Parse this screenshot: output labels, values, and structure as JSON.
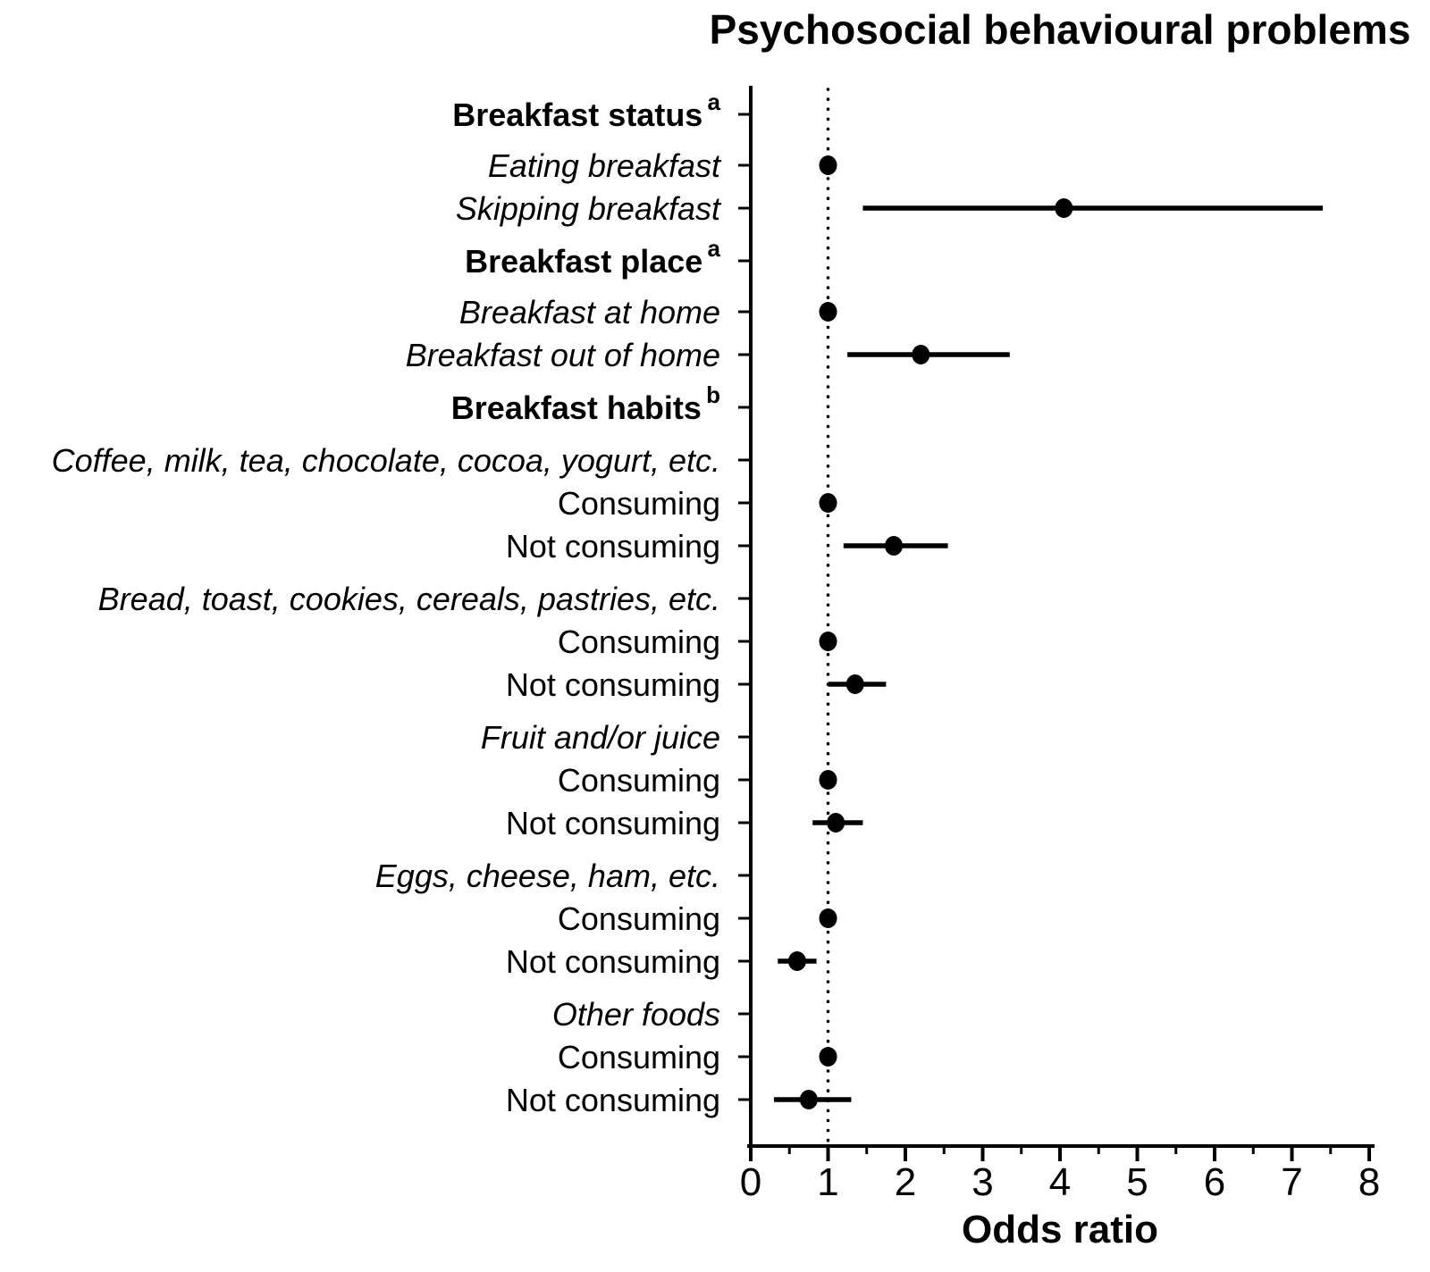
{
  "title": "Psychosocial behavioural problems",
  "xlabel": "Odds ratio",
  "chart_data": {
    "type": "scatter",
    "subtype": "forest-plot",
    "title": "Psychosocial behavioural problems",
    "xlabel": "Odds ratio",
    "xlim": [
      0,
      8
    ],
    "x_major_ticks": [
      0,
      1,
      2,
      3,
      4,
      5,
      6,
      7,
      8
    ],
    "x_minor_tick_step": 0.5,
    "reference_line_x": 1,
    "grid": false,
    "point_color": "#000000",
    "background_color": "#ffffff",
    "legend": "none",
    "rows": [
      {
        "label": "Breakfast status",
        "sup": "a",
        "style": "header",
        "or": null,
        "ci_low": null,
        "ci_high": null
      },
      {
        "label": "Eating breakfast",
        "sup": "",
        "style": "item-italic",
        "or": 1.0,
        "ci_low": null,
        "ci_high": null
      },
      {
        "label": "Skipping breakfast",
        "sup": "",
        "style": "item-italic",
        "or": 4.05,
        "ci_low": 1.45,
        "ci_high": 7.4
      },
      {
        "label": "Breakfast place",
        "sup": "a",
        "style": "header",
        "or": null,
        "ci_low": null,
        "ci_high": null
      },
      {
        "label": "Breakfast at home",
        "sup": "",
        "style": "item-italic",
        "or": 1.0,
        "ci_low": null,
        "ci_high": null
      },
      {
        "label": "Breakfast out of home",
        "sup": "",
        "style": "item-italic",
        "or": 2.2,
        "ci_low": 1.25,
        "ci_high": 3.35
      },
      {
        "label": "Breakfast habits",
        "sup": "b",
        "style": "header",
        "or": null,
        "ci_low": null,
        "ci_high": null
      },
      {
        "label": "Coffee, milk, tea, chocolate, cocoa, yogurt, etc.",
        "sup": "",
        "style": "group-italic",
        "or": null,
        "ci_low": null,
        "ci_high": null
      },
      {
        "label": "Consuming",
        "sup": "",
        "style": "item",
        "or": 1.0,
        "ci_low": null,
        "ci_high": null
      },
      {
        "label": "Not consuming",
        "sup": "",
        "style": "item",
        "or": 1.85,
        "ci_low": 1.2,
        "ci_high": 2.55
      },
      {
        "label": "Bread, toast, cookies, cereals, pastries, etc.",
        "sup": "",
        "style": "group-italic",
        "or": null,
        "ci_low": null,
        "ci_high": null
      },
      {
        "label": "Consuming",
        "sup": "",
        "style": "item",
        "or": 1.0,
        "ci_low": null,
        "ci_high": null
      },
      {
        "label": "Not consuming",
        "sup": "",
        "style": "item",
        "or": 1.35,
        "ci_low": 1.0,
        "ci_high": 1.75
      },
      {
        "label": "Fruit and/or juice",
        "sup": "",
        "style": "group-italic",
        "or": null,
        "ci_low": null,
        "ci_high": null
      },
      {
        "label": "Consuming",
        "sup": "",
        "style": "item",
        "or": 1.0,
        "ci_low": null,
        "ci_high": null
      },
      {
        "label": "Not consuming",
        "sup": "",
        "style": "item",
        "or": 1.1,
        "ci_low": 0.8,
        "ci_high": 1.45
      },
      {
        "label": "Eggs, cheese, ham, etc.",
        "sup": "",
        "style": "group-italic",
        "or": null,
        "ci_low": null,
        "ci_high": null
      },
      {
        "label": "Consuming",
        "sup": "",
        "style": "item",
        "or": 1.0,
        "ci_low": null,
        "ci_high": null
      },
      {
        "label": "Not consuming",
        "sup": "",
        "style": "item",
        "or": 0.6,
        "ci_low": 0.35,
        "ci_high": 0.85
      },
      {
        "label": "Other foods",
        "sup": "",
        "style": "group-italic",
        "or": null,
        "ci_low": null,
        "ci_high": null
      },
      {
        "label": "Consuming",
        "sup": "",
        "style": "item",
        "or": 1.0,
        "ci_low": null,
        "ci_high": null
      },
      {
        "label": "Not consuming",
        "sup": "",
        "style": "item",
        "or": 0.75,
        "ci_low": 0.3,
        "ci_high": 1.3
      }
    ]
  }
}
